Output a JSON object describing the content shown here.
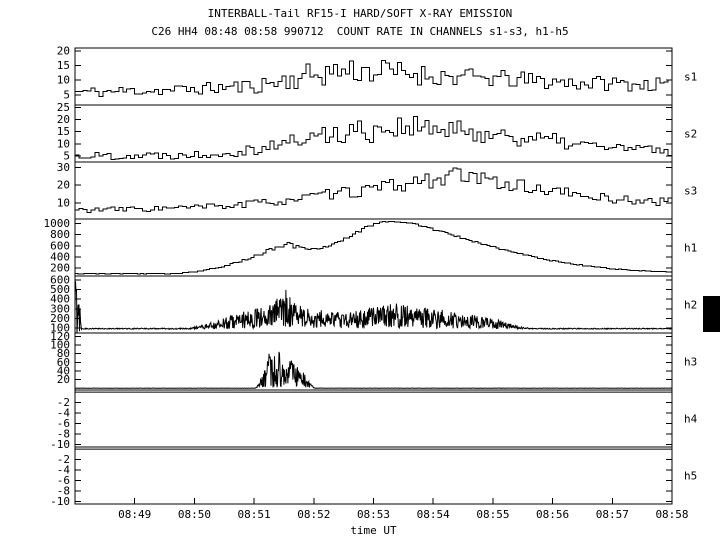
{
  "chart_data": {
    "type": "line",
    "title": "INTERBALL-Tail RF15-I HARD/SOFT X-RAY EMISSION",
    "subtitle": "C26 HH4 08:48 08:58 990712  COUNT RATE IN CHANNELS s1-s3, h1-h5",
    "xlabel": "time UT",
    "x_range": [
      "08:48",
      "08:58"
    ],
    "x_ticks": [
      "08:49",
      "08:50",
      "08:51",
      "08:52",
      "08:53",
      "08:54",
      "08:55",
      "08:56",
      "08:57",
      "08:58"
    ],
    "colors": {
      "fg": "#000000",
      "bg": "#ffffff"
    },
    "legend_position": "right-of-each-panel",
    "grid": false,
    "panels": [
      {
        "name": "s1",
        "style": "step",
        "ylim": [
          1.5,
          21
        ],
        "yticks": [
          5,
          10,
          15,
          20
        ],
        "points_per_min": 15,
        "seed": 11,
        "envelope": [
          [
            0,
            6
          ],
          [
            0.5,
            6
          ],
          [
            1,
            6.5
          ],
          [
            1.5,
            6.5
          ],
          [
            2,
            7
          ],
          [
            2.5,
            7.5
          ],
          [
            3,
            8
          ],
          [
            3.5,
            10
          ],
          [
            4,
            12
          ],
          [
            4.5,
            13.5
          ],
          [
            5,
            13
          ],
          [
            5.5,
            12.5
          ],
          [
            6,
            11.5
          ],
          [
            6.5,
            11
          ],
          [
            7,
            10.5
          ],
          [
            7.5,
            10
          ],
          [
            8,
            9.5
          ],
          [
            8.5,
            9
          ],
          [
            9,
            9
          ],
          [
            9.5,
            8.5
          ],
          [
            10,
            8.5
          ]
        ],
        "noise": [
          [
            0,
            1.8
          ],
          [
            2,
            2
          ],
          [
            3,
            2.6
          ],
          [
            4,
            4.5
          ],
          [
            5,
            4.5
          ],
          [
            6,
            3.4
          ],
          [
            7,
            3
          ],
          [
            8,
            2.8
          ],
          [
            9,
            2.5
          ],
          [
            10,
            2.2
          ]
        ]
      },
      {
        "name": "s2",
        "style": "step",
        "ylim": [
          2.5,
          26
        ],
        "yticks": [
          5,
          10,
          15,
          20,
          25
        ],
        "points_per_min": 15,
        "seed": 22,
        "envelope": [
          [
            0,
            5
          ],
          [
            1,
            5.2
          ],
          [
            1.8,
            5.5
          ],
          [
            2.5,
            6.5
          ],
          [
            3,
            8
          ],
          [
            3.5,
            10.5
          ],
          [
            4,
            13
          ],
          [
            4.5,
            15
          ],
          [
            5,
            16
          ],
          [
            5.5,
            17.5
          ],
          [
            6,
            15.5
          ],
          [
            6.5,
            15
          ],
          [
            7,
            14
          ],
          [
            7.5,
            12.5
          ],
          [
            8,
            11
          ],
          [
            8.5,
            9.5
          ],
          [
            9,
            8.5
          ],
          [
            9.5,
            7.5
          ],
          [
            10,
            7
          ]
        ],
        "noise": [
          [
            0,
            1.6
          ],
          [
            2,
            1.8
          ],
          [
            3,
            2.5
          ],
          [
            4,
            4
          ],
          [
            5,
            5.5
          ],
          [
            6,
            4.5
          ],
          [
            7,
            4
          ],
          [
            8,
            3.2
          ],
          [
            9,
            2.5
          ],
          [
            10,
            2
          ]
        ]
      },
      {
        "name": "s3",
        "style": "step",
        "ylim": [
          1,
          33
        ],
        "yticks": [
          10,
          20,
          30
        ],
        "points_per_min": 15,
        "seed": 33,
        "envelope": [
          [
            0,
            6
          ],
          [
            1,
            6.5
          ],
          [
            2,
            7.5
          ],
          [
            2.8,
            9
          ],
          [
            3.5,
            11.5
          ],
          [
            4.2,
            14.5
          ],
          [
            4.8,
            17
          ],
          [
            5.4,
            20
          ],
          [
            5.9,
            23
          ],
          [
            6.3,
            25.5
          ],
          [
            6.7,
            23.5
          ],
          [
            7.1,
            21.5
          ],
          [
            7.6,
            18.5
          ],
          [
            8.1,
            16
          ],
          [
            8.6,
            13.5
          ],
          [
            9.1,
            12
          ],
          [
            9.6,
            11
          ],
          [
            10,
            10.5
          ]
        ],
        "noise": [
          [
            0,
            1.5
          ],
          [
            2,
            1.8
          ],
          [
            3.5,
            2.5
          ],
          [
            5,
            3.5
          ],
          [
            6,
            5
          ],
          [
            7,
            4
          ],
          [
            8,
            3.2
          ],
          [
            9,
            2.5
          ],
          [
            10,
            2.2
          ]
        ]
      },
      {
        "name": "h1",
        "style": "step",
        "ylim": [
          60,
          1080
        ],
        "yticks": [
          200,
          400,
          600,
          800,
          1000
        ],
        "points_per_min": 20,
        "seed": 44,
        "envelope": [
          [
            0,
            100
          ],
          [
            1.6,
            102
          ],
          [
            2,
            135
          ],
          [
            2.4,
            210
          ],
          [
            2.8,
            340
          ],
          [
            3.05,
            440
          ],
          [
            3.25,
            530
          ],
          [
            3.4,
            575
          ],
          [
            3.55,
            640
          ],
          [
            3.65,
            590
          ],
          [
            3.8,
            565
          ],
          [
            3.95,
            545
          ],
          [
            4.15,
            575
          ],
          [
            4.35,
            640
          ],
          [
            4.6,
            780
          ],
          [
            4.85,
            930
          ],
          [
            5.05,
            1010
          ],
          [
            5.25,
            1045
          ],
          [
            5.5,
            1025
          ],
          [
            5.75,
            965
          ],
          [
            6,
            890
          ],
          [
            6.25,
            810
          ],
          [
            6.5,
            730
          ],
          [
            6.75,
            650
          ],
          [
            7,
            575
          ],
          [
            7.25,
            505
          ],
          [
            7.5,
            440
          ],
          [
            7.75,
            380
          ],
          [
            8,
            330
          ],
          [
            8.25,
            285
          ],
          [
            8.5,
            248
          ],
          [
            8.75,
            215
          ],
          [
            9,
            188
          ],
          [
            9.25,
            168
          ],
          [
            9.5,
            150
          ],
          [
            9.75,
            138
          ],
          [
            10,
            130
          ]
        ],
        "noise": [
          [
            0,
            3
          ],
          [
            1.6,
            4
          ],
          [
            2.2,
            10
          ],
          [
            2.8,
            18
          ],
          [
            3.3,
            28
          ],
          [
            3.6,
            40
          ],
          [
            3.9,
            22
          ],
          [
            4.3,
            22
          ],
          [
            4.8,
            20
          ],
          [
            5.3,
            18
          ],
          [
            6,
            18
          ],
          [
            7,
            14
          ],
          [
            8,
            10
          ],
          [
            9,
            6
          ],
          [
            10,
            4
          ]
        ]
      },
      {
        "name": "h2",
        "style": "line",
        "ylim": [
          50,
          640
        ],
        "yticks": [
          100,
          200,
          300,
          400,
          500,
          600
        ],
        "points_per_min": 120,
        "seed": 55,
        "envelope": [
          [
            0,
            340
          ],
          [
            0.07,
            340
          ],
          [
            0.11,
            95
          ],
          [
            1.9,
            95
          ],
          [
            2.1,
            108
          ],
          [
            2.4,
            135
          ],
          [
            2.7,
            175
          ],
          [
            2.9,
            195
          ],
          [
            3.1,
            205
          ],
          [
            3.3,
            225
          ],
          [
            3.42,
            280
          ],
          [
            3.5,
            350
          ],
          [
            3.58,
            280
          ],
          [
            3.7,
            225
          ],
          [
            3.9,
            205
          ],
          [
            4.2,
            190
          ],
          [
            4.6,
            180
          ],
          [
            5,
            225
          ],
          [
            5.4,
            230
          ],
          [
            5.8,
            210
          ],
          [
            6.2,
            190
          ],
          [
            6.6,
            170
          ],
          [
            7,
            145
          ],
          [
            7.3,
            120
          ],
          [
            7.5,
            100
          ],
          [
            7.65,
            95
          ],
          [
            10,
            95
          ]
        ],
        "noise": [
          [
            0,
            330
          ],
          [
            0.07,
            330
          ],
          [
            0.11,
            5
          ],
          [
            1.9,
            6
          ],
          [
            2.1,
            18
          ],
          [
            2.4,
            45
          ],
          [
            2.7,
            80
          ],
          [
            2.9,
            95
          ],
          [
            3.1,
            105
          ],
          [
            3.3,
            120
          ],
          [
            3.42,
            165
          ],
          [
            3.5,
            250
          ],
          [
            3.58,
            165
          ],
          [
            3.7,
            120
          ],
          [
            3.9,
            105
          ],
          [
            4.2,
            95
          ],
          [
            4.6,
            85
          ],
          [
            5,
            125
          ],
          [
            5.4,
            130
          ],
          [
            5.8,
            110
          ],
          [
            6.2,
            95
          ],
          [
            6.6,
            75
          ],
          [
            7,
            55
          ],
          [
            7.3,
            28
          ],
          [
            7.5,
            10
          ],
          [
            7.65,
            5
          ],
          [
            10,
            5
          ]
        ]
      },
      {
        "name": "h3",
        "style": "line",
        "ylim": [
          -4,
          128
        ],
        "yticks": [
          20,
          40,
          60,
          80,
          100,
          120
        ],
        "points_per_min": 120,
        "seed": 66,
        "envelope": [
          [
            0,
            0.3
          ],
          [
            3.02,
            0.3
          ],
          [
            3.08,
            6
          ],
          [
            3.18,
            28
          ],
          [
            3.28,
            58
          ],
          [
            3.34,
            60
          ],
          [
            3.42,
            45
          ],
          [
            3.52,
            30
          ],
          [
            3.62,
            34
          ],
          [
            3.73,
            26
          ],
          [
            3.83,
            19
          ],
          [
            3.93,
            7
          ],
          [
            4.02,
            0.3
          ],
          [
            10,
            0.3
          ]
        ],
        "noise": [
          [
            0,
            0.25
          ],
          [
            3.02,
            0.25
          ],
          [
            3.08,
            5
          ],
          [
            3.18,
            26
          ],
          [
            3.28,
            56
          ],
          [
            3.34,
            58
          ],
          [
            3.42,
            42
          ],
          [
            3.52,
            27
          ],
          [
            3.62,
            31
          ],
          [
            3.73,
            23
          ],
          [
            3.83,
            17
          ],
          [
            3.93,
            6
          ],
          [
            4.02,
            0.25
          ],
          [
            10,
            0.25
          ]
        ]
      },
      {
        "name": "h4",
        "style": "line",
        "ylim": [
          -10.5,
          0.4
        ],
        "yticks": [
          -2,
          -4,
          -6,
          -8,
          -10
        ],
        "points_per_min": 3,
        "seed": 77,
        "envelope": [
          [
            0,
            0
          ],
          [
            10,
            0
          ]
        ],
        "noise": [
          [
            0,
            0
          ],
          [
            10,
            0
          ]
        ]
      },
      {
        "name": "h5",
        "style": "line",
        "ylim": [
          -10.5,
          0.4
        ],
        "yticks": [
          -2,
          -4,
          -6,
          -8,
          -10
        ],
        "points_per_min": 3,
        "seed": 88,
        "envelope": [
          [
            0,
            0
          ],
          [
            10,
            0
          ]
        ],
        "noise": [
          [
            0,
            0
          ],
          [
            10,
            0
          ]
        ]
      }
    ]
  }
}
